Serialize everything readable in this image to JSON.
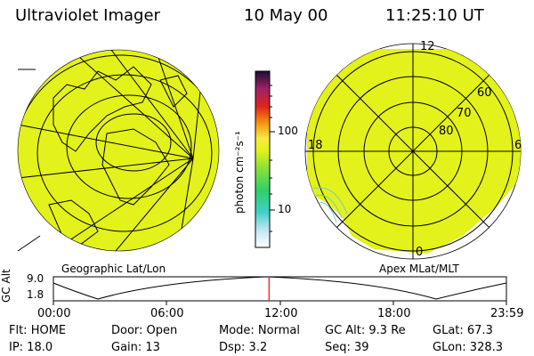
{
  "header": {
    "instrument": "Ultraviolet Imager",
    "date": "10 May 00",
    "time": "11:25:10 UT"
  },
  "colors": {
    "image_fill": "#e2f21a",
    "grid": "#000000",
    "marker": "#ff0000"
  },
  "left_panel": {
    "caption": "Geographic Lat/Lon"
  },
  "right_panel": {
    "caption": "Apex MLat/MLT",
    "mlt_labels": {
      "top": "12",
      "left": "18",
      "right": "6",
      "bottom": "0"
    },
    "lat_labels": [
      "60",
      "70",
      "80"
    ]
  },
  "colorbar": {
    "unit_label": "photon cm⁻²s⁻¹",
    "ticks": [
      "100",
      "10"
    ]
  },
  "timeline": {
    "y_label": "GC Alt",
    "y_ticks": [
      "9.0",
      "1.8"
    ],
    "x_ticks": [
      "00:00",
      "06:00",
      "12:00",
      "18:00",
      "23:59"
    ],
    "marker_fraction_of_day": 0.476
  },
  "status": {
    "flt": "Flt: HOME",
    "door": "Door: Open",
    "mode": "Mode: Normal",
    "gc_alt": "GC Alt: 9.3 Re",
    "glat": "GLat:  67.3",
    "ip": "IP: 18.0",
    "gain": "Gain: 13",
    "dsp": "Dsp:    3.2",
    "seq": "Seq: 39",
    "glon": "GLon: 328.3"
  }
}
